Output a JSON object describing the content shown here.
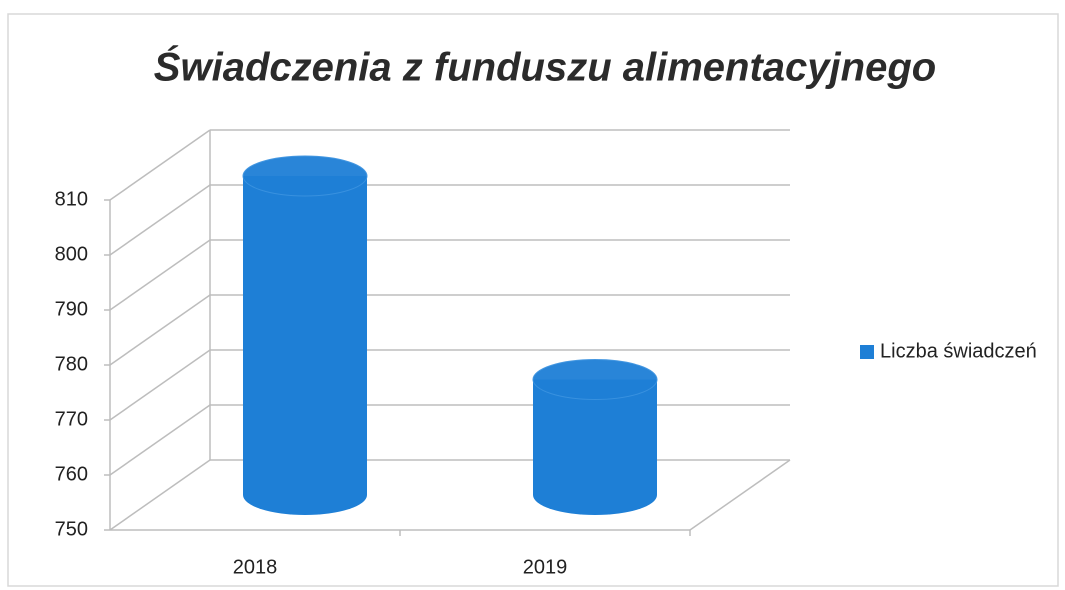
{
  "chart_data": {
    "type": "cylinder_bar",
    "title": "Świadczenia z funduszu alimentacyjnego",
    "categories": [
      "2018",
      "2019"
    ],
    "series": [
      {
        "name": "Liczba świadczeń",
        "color": "#1e7fd6",
        "values": [
          808,
          771
        ]
      }
    ],
    "ylim": [
      750,
      810
    ],
    "yticks": [
      750,
      760,
      770,
      780,
      790,
      800,
      810
    ],
    "grid": true,
    "legend": "right"
  }
}
